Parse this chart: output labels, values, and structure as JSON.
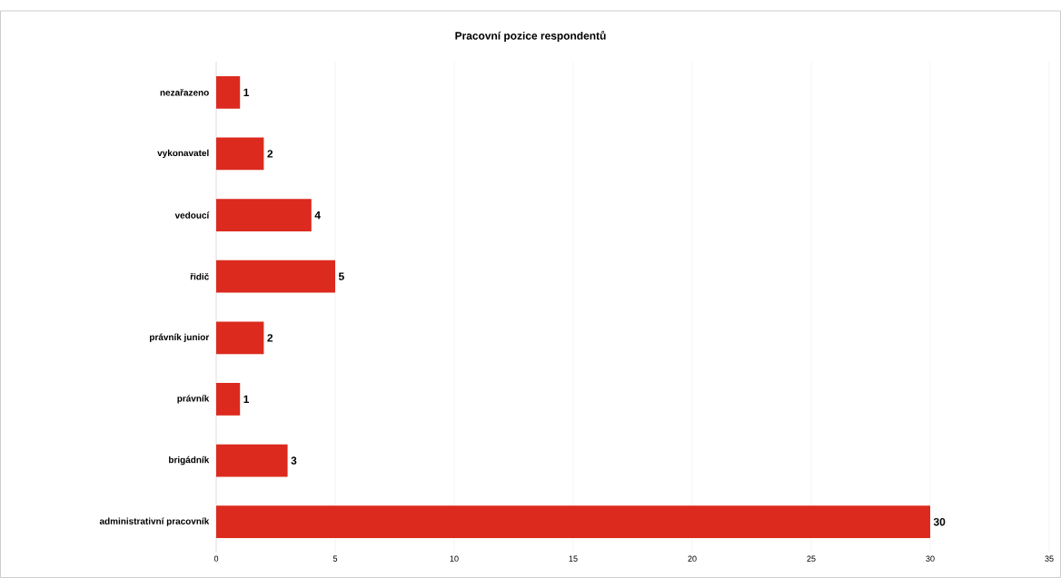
{
  "chart_data": {
    "type": "bar",
    "orientation": "horizontal",
    "title": "Pracovní pozice respondentů",
    "categories": [
      "nezařazeno",
      "vykonavatel",
      "vedoucí",
      "řidič",
      "právník junior",
      "právník",
      "brigádník",
      "administrativní pracovník"
    ],
    "values": [
      1,
      2,
      4,
      5,
      2,
      1,
      3,
      30
    ],
    "color": "#dc2a1f",
    "xlim": [
      0,
      35
    ],
    "xticks": [
      0,
      5,
      10,
      15,
      20,
      25,
      30,
      35
    ],
    "grid": "x",
    "data_labels": true
  }
}
